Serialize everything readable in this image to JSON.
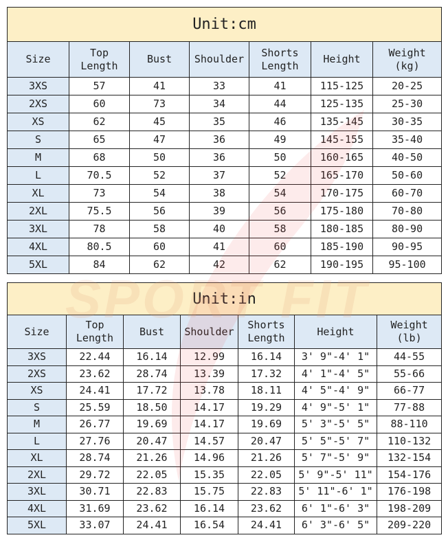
{
  "watermark": "SPORT FIT",
  "colors": {
    "title_bg": "#fdefc6",
    "header_bg": "#dde9f5"
  },
  "cm": {
    "title": "Unit:cm",
    "headers": [
      [
        "Size"
      ],
      [
        "Top",
        "Length"
      ],
      [
        "Bust"
      ],
      [
        "Shoulder"
      ],
      [
        "Shorts",
        "Length"
      ],
      [
        "Height"
      ],
      [
        "Weight",
        "(kg)"
      ]
    ],
    "rows": [
      [
        "3XS",
        "57",
        "41",
        "33",
        "41",
        "115-125",
        "20-25"
      ],
      [
        "2XS",
        "60",
        "73",
        "34",
        "44",
        "125-135",
        "25-30"
      ],
      [
        "XS",
        "62",
        "45",
        "35",
        "46",
        "135-145",
        "30-35"
      ],
      [
        "S",
        "65",
        "47",
        "36",
        "49",
        "145-155",
        "35-40"
      ],
      [
        "M",
        "68",
        "50",
        "36",
        "50",
        "160-165",
        "40-50"
      ],
      [
        "L",
        "70.5",
        "52",
        "37",
        "52",
        "165-170",
        "50-60"
      ],
      [
        "XL",
        "73",
        "54",
        "38",
        "54",
        "170-175",
        "60-70"
      ],
      [
        "2XL",
        "75.5",
        "56",
        "39",
        "56",
        "175-180",
        "70-80"
      ],
      [
        "3XL",
        "78",
        "58",
        "40",
        "58",
        "180-185",
        "80-90"
      ],
      [
        "4XL",
        "80.5",
        "60",
        "41",
        "60",
        "185-190",
        "90-95"
      ],
      [
        "5XL",
        "84",
        "62",
        "42",
        "62",
        "190-195",
        "95-100"
      ]
    ]
  },
  "in": {
    "title": "Unit:in",
    "headers": [
      [
        "Size"
      ],
      [
        "Top",
        "Length"
      ],
      [
        "Bust"
      ],
      [
        "Shoulder"
      ],
      [
        "Shorts",
        "Length"
      ],
      [
        "Height"
      ],
      [
        "Weight",
        "(lb)"
      ]
    ],
    "rows": [
      [
        "3XS",
        "22.44",
        "16.14",
        "12.99",
        "16.14",
        "3' 9\"-4' 1\"",
        "44-55"
      ],
      [
        "2XS",
        "23.62",
        "28.74",
        "13.39",
        "17.32",
        "4' 1\"-4' 5\"",
        "55-66"
      ],
      [
        "XS",
        "24.41",
        "17.72",
        "13.78",
        "18.11",
        "4' 5\"-4' 9\"",
        "66-77"
      ],
      [
        "S",
        "25.59",
        "18.50",
        "14.17",
        "19.29",
        "4' 9\"-5' 1\"",
        "77-88"
      ],
      [
        "M",
        "26.77",
        "19.69",
        "14.17",
        "19.69",
        "5' 3\"-5' 5\"",
        "88-110"
      ],
      [
        "L",
        "27.76",
        "20.47",
        "14.57",
        "20.47",
        "5' 5\"-5' 7\"",
        "110-132"
      ],
      [
        "XL",
        "28.74",
        "21.26",
        "14.96",
        "21.26",
        "5' 7\"-5' 9\"",
        "132-154"
      ],
      [
        "2XL",
        "29.72",
        "22.05",
        "15.35",
        "22.05",
        "5' 9\"-5' 11\"",
        "154-176"
      ],
      [
        "3XL",
        "30.71",
        "22.83",
        "15.75",
        "22.83",
        "5' 11\"-6' 1\"",
        "176-198"
      ],
      [
        "4XL",
        "31.69",
        "23.62",
        "16.14",
        "23.62",
        "6' 1\"-6' 3\"",
        "198-209"
      ],
      [
        "5XL",
        "33.07",
        "24.41",
        "16.54",
        "24.41",
        "6' 3\"-6' 5\"",
        "209-220"
      ]
    ]
  }
}
